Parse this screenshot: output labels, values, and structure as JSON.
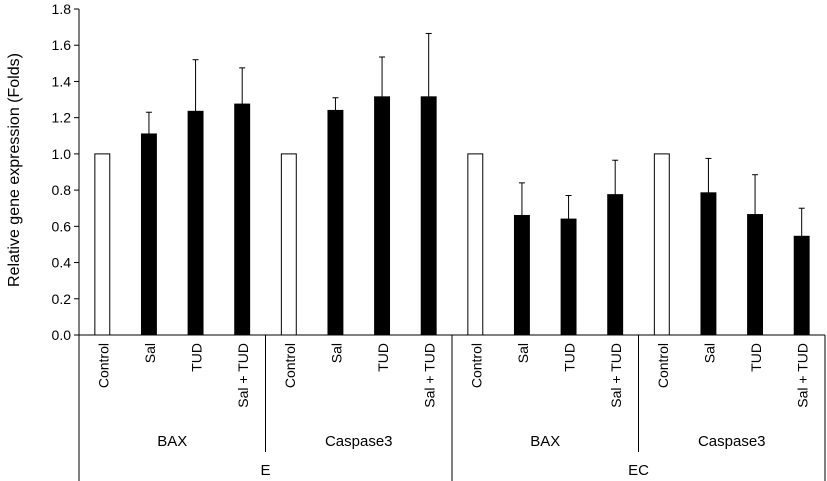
{
  "chart_data": {
    "type": "bar",
    "ylabel": "Relative gene expression (Folds)",
    "ylim": [
      0,
      1.8
    ],
    "yticks": [
      "0.0",
      "0.2",
      "0.4",
      "0.6",
      "0.8",
      "1.0",
      "1.2",
      "1.4",
      "1.6",
      "1.8"
    ],
    "grid": false,
    "legend": "none",
    "colors": {
      "control": "#ffffff",
      "treatment": "#000000",
      "stroke": "#000000"
    },
    "groups": [
      {
        "label": "E",
        "genes": [
          {
            "label": "BAX",
            "bars": [
              {
                "category": "Control",
                "value": 1.0,
                "error": 0,
                "fill": "control"
              },
              {
                "category": "Sal",
                "value": 1.11,
                "error": 0.12,
                "fill": "treatment"
              },
              {
                "category": "TUD",
                "value": 1.235,
                "error": 0.285,
                "fill": "treatment"
              },
              {
                "category": "Sal + TUD",
                "value": 1.275,
                "error": 0.2,
                "fill": "treatment"
              }
            ]
          },
          {
            "label": "Caspase3",
            "bars": [
              {
                "category": "Control",
                "value": 1.0,
                "error": 0,
                "fill": "control"
              },
              {
                "category": "Sal",
                "value": 1.24,
                "error": 0.07,
                "fill": "treatment"
              },
              {
                "category": "TUD",
                "value": 1.315,
                "error": 0.22,
                "fill": "treatment"
              },
              {
                "category": "Sal + TUD",
                "value": 1.315,
                "error": 0.35,
                "fill": "treatment"
              }
            ]
          }
        ]
      },
      {
        "label": "EC",
        "genes": [
          {
            "label": "BAX",
            "bars": [
              {
                "category": "Control",
                "value": 1.0,
                "error": 0,
                "fill": "control"
              },
              {
                "category": "Sal",
                "value": 0.66,
                "error": 0.18,
                "fill": "treatment"
              },
              {
                "category": "TUD",
                "value": 0.64,
                "error": 0.13,
                "fill": "treatment"
              },
              {
                "category": "Sal + TUD",
                "value": 0.775,
                "error": 0.19,
                "fill": "treatment"
              }
            ]
          },
          {
            "label": "Caspase3",
            "bars": [
              {
                "category": "Control",
                "value": 1.0,
                "error": 0,
                "fill": "control"
              },
              {
                "category": "Sal",
                "value": 0.785,
                "error": 0.19,
                "fill": "treatment"
              },
              {
                "category": "TUD",
                "value": 0.665,
                "error": 0.22,
                "fill": "treatment"
              },
              {
                "category": "Sal + TUD",
                "value": 0.545,
                "error": 0.155,
                "fill": "treatment"
              }
            ]
          }
        ]
      }
    ]
  }
}
